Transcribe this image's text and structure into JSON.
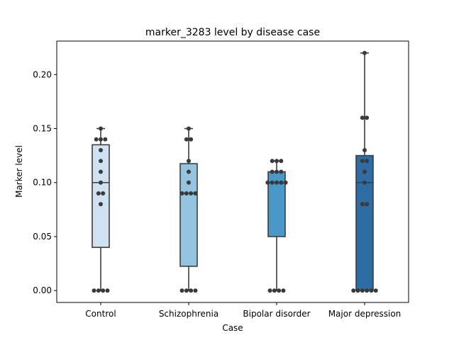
{
  "chart_data": {
    "type": "box",
    "title": "marker_3283 level by disease case",
    "xlabel": "Case",
    "ylabel": "Marker level",
    "ylim": [
      -0.011,
      0.231
    ],
    "yticks": [
      "0.00",
      "0.05",
      "0.10",
      "0.15",
      "0.20"
    ],
    "grid": false,
    "categories": [
      "Control",
      "Schizophrenia",
      "Bipolar disorder",
      "Major depression"
    ],
    "colors": [
      "#d0e1f2",
      "#94c4df",
      "#4a98c9",
      "#2e6da4"
    ],
    "boxes": [
      {
        "whislo": 0.0,
        "q1": 0.04,
        "med": 0.1,
        "q3": 0.135,
        "whishi": 0.15
      },
      {
        "whislo": 0.0,
        "q1": 0.0225,
        "med": 0.09,
        "q3": 0.1175,
        "whishi": 0.15
      },
      {
        "whislo": 0.0,
        "q1": 0.05,
        "med": 0.1,
        "q3": 0.11,
        "whishi": 0.12
      },
      {
        "whislo": 0.0,
        "q1": 0.0,
        "med": 0.1,
        "q3": 0.125,
        "whishi": 0.22
      }
    ],
    "points": [
      [
        0.15,
        0.14,
        0.14,
        0.14,
        0.13,
        0.12,
        0.11,
        0.1,
        0.09,
        0.09,
        0.08,
        0.0,
        0.0,
        0.0,
        0.0
      ],
      [
        0.15,
        0.14,
        0.14,
        0.12,
        0.11,
        0.1,
        0.09,
        0.09,
        0.09,
        0.09,
        0.0,
        0.0,
        0.0,
        0.0
      ],
      [
        0.12,
        0.12,
        0.12,
        0.11,
        0.11,
        0.11,
        0.1,
        0.1,
        0.1,
        0.1,
        0.1,
        0.0,
        0.0,
        0.0,
        0.0
      ],
      [
        0.22,
        0.16,
        0.16,
        0.13,
        0.12,
        0.12,
        0.11,
        0.1,
        0.08,
        0.08,
        0.0,
        0.0,
        0.0,
        0.0,
        0.0,
        0.0
      ]
    ]
  }
}
